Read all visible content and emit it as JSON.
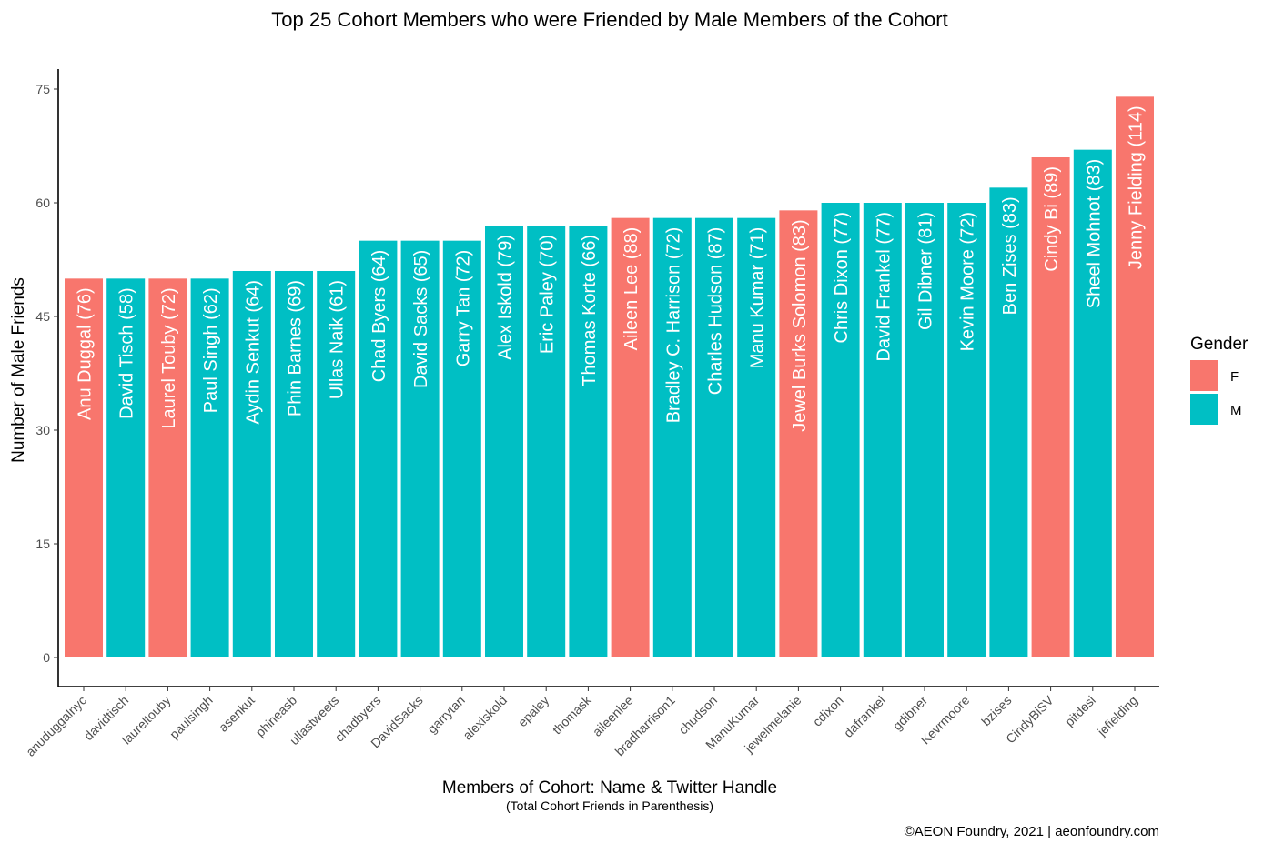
{
  "chart_data": {
    "type": "bar",
    "title": "Top 25 Cohort Members who were Friended by Male Members of the Cohort",
    "xlabel": "Members of Cohort: Name & Twitter Handle",
    "xlabel_sub": "(Total Cohort Friends in Parenthesis)",
    "ylabel": "Number of Male Friends",
    "ylim": [
      0,
      76
    ],
    "yticks": [
      0,
      15,
      30,
      45,
      60,
      75
    ],
    "grid": false,
    "legend": {
      "title": "Gender",
      "position": "right",
      "entries": [
        {
          "key": "F",
          "label": "F",
          "color": "#F8766D"
        },
        {
          "key": "M",
          "label": "M",
          "color": "#00BFC4"
        }
      ]
    },
    "categories": [
      "anuduggalnyc",
      "davidtisch",
      "laureltouby",
      "paulsingh",
      "asenkut",
      "phineasb",
      "ullastweets",
      "chadbyers",
      "DavidSacks",
      "garrytan",
      "alexiskold",
      "epaley",
      "thomask",
      "aileenlee",
      "bradharrison1",
      "chudson",
      "ManuKumar",
      "jewelmelanie",
      "cdixon",
      "dafrankel",
      "gdibner",
      "Kevrmoore",
      "bzises",
      "CindyBiSV",
      "pitdesi",
      "jefielding"
    ],
    "bar_labels": [
      "Anu Duggal (76)",
      "David Tisch (58)",
      "Laurel Touby (72)",
      "Paul Singh (62)",
      "Aydin Senkut (64)",
      "Phin Barnes (69)",
      "Ullas Naik (61)",
      "Chad Byers (64)",
      "David Sacks (65)",
      "Garry Tan (72)",
      "Alex Iskold (79)",
      "Eric Paley (70)",
      "Thomas Korte (66)",
      "Aileen Lee (88)",
      "Bradley C. Harrison (72)",
      "Charles Hudson (87)",
      "Manu Kumar (71)",
      "Jewel Burks Solomon (83)",
      "Chris Dixon (77)",
      "David Frankel (77)",
      "Gil Dibner (81)",
      "Kevin Moore (72)",
      "Ben Zises (83)",
      "Cindy Bi (89)",
      "Sheel Mohnot (83)",
      "Jenny Fielding (114)"
    ],
    "values": [
      50,
      50,
      50,
      50,
      51,
      51,
      51,
      55,
      55,
      55,
      57,
      57,
      57,
      58,
      58,
      58,
      58,
      59,
      60,
      60,
      60,
      60,
      62,
      66,
      67,
      74
    ],
    "gender": [
      "F",
      "M",
      "F",
      "M",
      "M",
      "M",
      "M",
      "M",
      "M",
      "M",
      "M",
      "M",
      "M",
      "F",
      "M",
      "M",
      "M",
      "F",
      "M",
      "M",
      "M",
      "M",
      "M",
      "F",
      "M",
      "F"
    ]
  },
  "caption": "©AEON Foundry, 2021 | aeonfoundry.com"
}
